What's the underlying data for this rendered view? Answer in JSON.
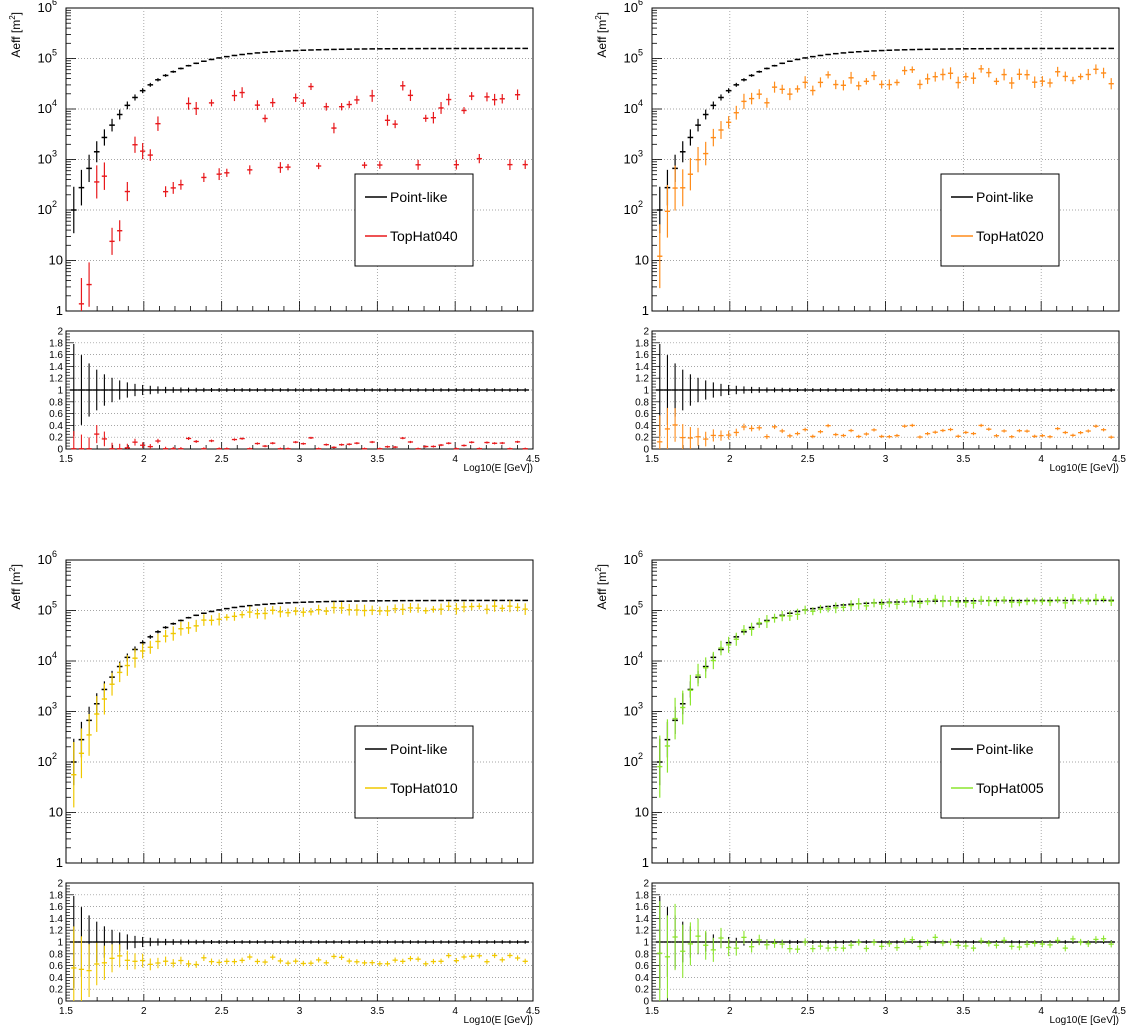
{
  "chart_data": [
    {
      "type": "scatter",
      "ylabel": "Aeff [m",
      "ylabel_sup": "2",
      "ylabel_end": "]",
      "xlabel": "Log10(E [GeV])",
      "yscale": "log",
      "xlim": [
        1.5,
        4.5
      ],
      "ylim": [
        1,
        1000000
      ],
      "y_ticks": [
        {
          "v": 1,
          "t": "1"
        },
        {
          "v": 10,
          "t": "10"
        },
        {
          "v": 100,
          "t": "10",
          "s": "2"
        },
        {
          "v": 1000,
          "t": "10",
          "s": "3"
        },
        {
          "v": 10000,
          "t": "10",
          "s": "4"
        },
        {
          "v": 100000,
          "t": "10",
          "s": "5"
        },
        {
          "v": 1000000,
          "t": "10",
          "s": "6"
        }
      ],
      "ratio_ylim": [
        0,
        2
      ],
      "ratio_ticks": [
        "0",
        "0.2",
        "0.4",
        "0.6",
        "0.8",
        "1",
        "1.2",
        "1.4",
        "1.6",
        "1.8",
        "2"
      ],
      "x_ticks": [
        "1.5",
        "2",
        "2.5",
        "3",
        "3.5",
        "4",
        "4.5"
      ],
      "grid": true,
      "legend_position": "right",
      "series": [
        {
          "name": "Point-like",
          "color": "#000000",
          "profile": "pointlike"
        },
        {
          "name": "TopHat040",
          "color": "#e8191c",
          "profile": "ratio",
          "ratio_level": 0.07,
          "scatter": 0.12,
          "seed": 11
        }
      ]
    },
    {
      "type": "scatter",
      "ylabel": "Aeff [m",
      "ylabel_sup": "2",
      "ylabel_end": "]",
      "xlabel": "Log10(E [GeV])",
      "yscale": "log",
      "xlim": [
        1.5,
        4.5
      ],
      "ylim": [
        1,
        1000000
      ],
      "y_ticks": [
        {
          "v": 1,
          "t": "1"
        },
        {
          "v": 10,
          "t": "10"
        },
        {
          "v": 100,
          "t": "10",
          "s": "2"
        },
        {
          "v": 1000,
          "t": "10",
          "s": "3"
        },
        {
          "v": 10000,
          "t": "10",
          "s": "4"
        },
        {
          "v": 100000,
          "t": "10",
          "s": "5"
        },
        {
          "v": 1000000,
          "t": "10",
          "s": "6"
        }
      ],
      "ratio_ylim": [
        0,
        2
      ],
      "ratio_ticks": [
        "0",
        "0.2",
        "0.4",
        "0.6",
        "0.8",
        "1",
        "1.2",
        "1.4",
        "1.6",
        "1.8",
        "2"
      ],
      "x_ticks": [
        "1.5",
        "2",
        "2.5",
        "3",
        "3.5",
        "4",
        "4.5"
      ],
      "grid": true,
      "legend_position": "right",
      "series": [
        {
          "name": "Point-like",
          "color": "#000000",
          "profile": "pointlike"
        },
        {
          "name": "TopHat020",
          "color": "#ff8c1a",
          "profile": "ratio",
          "ratio_level": 0.3,
          "scatter": 0.1,
          "seed": 23
        }
      ]
    },
    {
      "type": "scatter",
      "ylabel": "Aeff [m",
      "ylabel_sup": "2",
      "ylabel_end": "]",
      "xlabel": "Log10(E [GeV])",
      "yscale": "log",
      "xlim": [
        1.5,
        4.5
      ],
      "ylim": [
        1,
        1000000
      ],
      "y_ticks": [
        {
          "v": 1,
          "t": "1"
        },
        {
          "v": 10,
          "t": "10"
        },
        {
          "v": 100,
          "t": "10",
          "s": "2"
        },
        {
          "v": 1000,
          "t": "10",
          "s": "3"
        },
        {
          "v": 10000,
          "t": "10",
          "s": "4"
        },
        {
          "v": 100000,
          "t": "10",
          "s": "5"
        },
        {
          "v": 1000000,
          "t": "10",
          "s": "6"
        }
      ],
      "ratio_ylim": [
        0,
        2
      ],
      "ratio_ticks": [
        "0",
        "0.2",
        "0.4",
        "0.6",
        "0.8",
        "1",
        "1.2",
        "1.4",
        "1.6",
        "1.8",
        "2"
      ],
      "x_ticks": [
        "1.5",
        "2",
        "2.5",
        "3",
        "3.5",
        "4",
        "4.5"
      ],
      "grid": true,
      "legend_position": "right",
      "series": [
        {
          "name": "Point-like",
          "color": "#000000",
          "profile": "pointlike"
        },
        {
          "name": "TopHat010",
          "color": "#f0c800",
          "profile": "ratio",
          "ratio_level": 0.7,
          "scatter": 0.08,
          "seed": 37
        }
      ]
    },
    {
      "type": "scatter",
      "ylabel": "Aeff [m",
      "ylabel_sup": "2",
      "ylabel_end": "]",
      "xlabel": "Log10(E [GeV])",
      "yscale": "log",
      "xlim": [
        1.5,
        4.5
      ],
      "ylim": [
        1,
        1000000
      ],
      "y_ticks": [
        {
          "v": 1,
          "t": "1"
        },
        {
          "v": 10,
          "t": "10"
        },
        {
          "v": 100,
          "t": "10",
          "s": "2"
        },
        {
          "v": 1000,
          "t": "10",
          "s": "3"
        },
        {
          "v": 10000,
          "t": "10",
          "s": "4"
        },
        {
          "v": 100000,
          "t": "10",
          "s": "5"
        },
        {
          "v": 1000000,
          "t": "10",
          "s": "6"
        }
      ],
      "ratio_ylim": [
        0,
        2
      ],
      "ratio_ticks": [
        "0",
        "0.2",
        "0.4",
        "0.6",
        "0.8",
        "1",
        "1.2",
        "1.4",
        "1.6",
        "1.8",
        "2"
      ],
      "x_ticks": [
        "1.5",
        "2",
        "2.5",
        "3",
        "3.5",
        "4",
        "4.5"
      ],
      "grid": true,
      "legend_position": "right",
      "series": [
        {
          "name": "Point-like",
          "color": "#000000",
          "profile": "pointlike"
        },
        {
          "name": "TopHat005",
          "color": "#8ce62e",
          "profile": "ratio",
          "ratio_level": 0.98,
          "scatter": 0.1,
          "seed": 53
        }
      ]
    }
  ]
}
